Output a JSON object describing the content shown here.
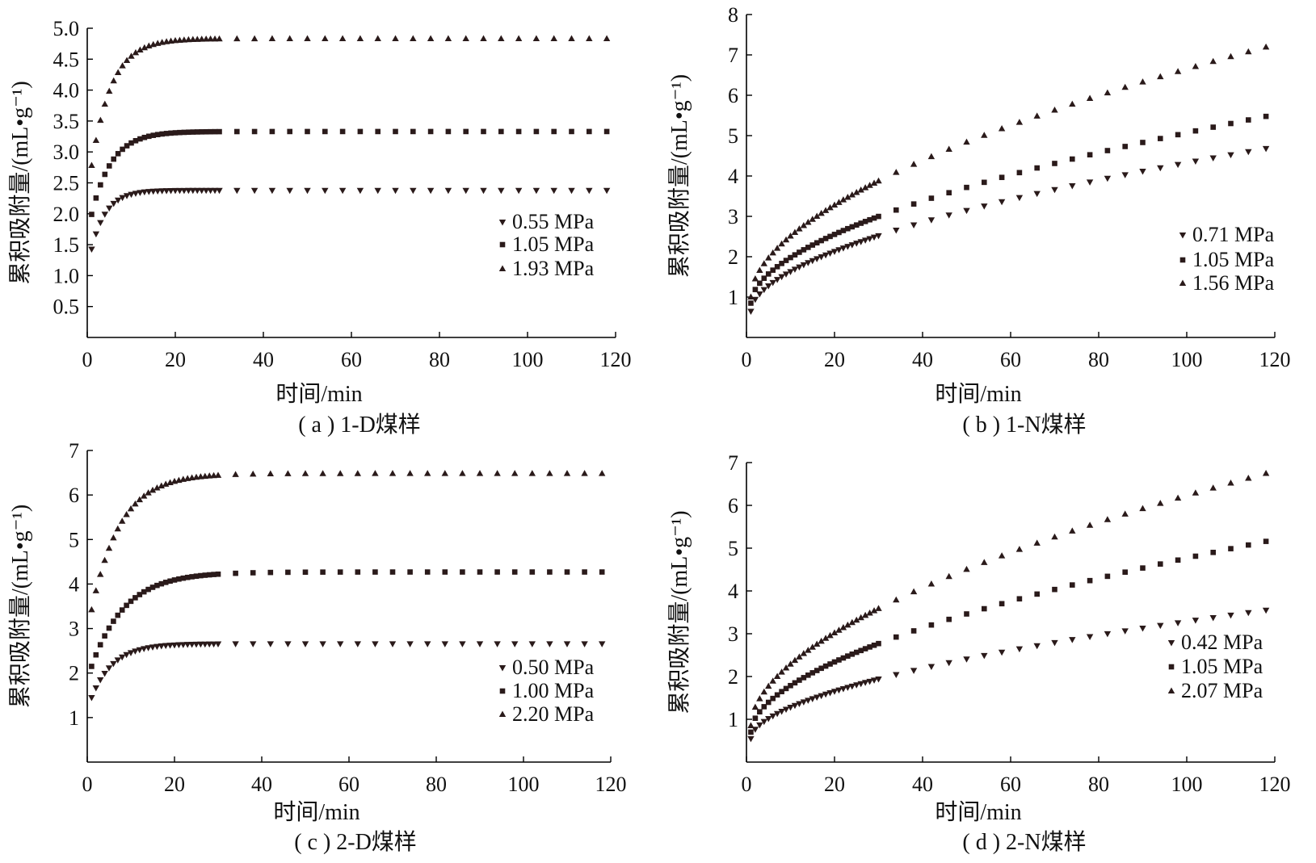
{
  "chart_data": [
    {
      "id": "a",
      "type": "scatter",
      "caption": "( a ) 1-D煤样",
      "xlabel": "时间/min",
      "ylabel": "累积吸附量/(mL•g⁻¹)",
      "xlim": [
        0,
        120
      ],
      "ylim": [
        0,
        5.0
      ],
      "xticks": [
        "0",
        "20",
        "40",
        "60",
        "80",
        "100",
        "120"
      ],
      "yticks": [
        "0.5",
        "1.0",
        "1.5",
        "2.0",
        "2.5",
        "3.0",
        "3.5",
        "4.0",
        "4.5",
        "5.0"
      ],
      "legend_position": "right",
      "series": [
        {
          "name": "0.55 MPa",
          "marker": "triangle-down",
          "asymptote": 2.38,
          "k": 0.3,
          "min": 1.43
        },
        {
          "name": "1.05 MPa",
          "marker": "square",
          "asymptote": 3.33,
          "k": 0.22,
          "min": 1.99
        },
        {
          "name": "1.93 MPa",
          "marker": "triangle-up",
          "asymptote": 4.83,
          "k": 0.22,
          "min": 2.78
        }
      ]
    },
    {
      "id": "b",
      "type": "scatter",
      "caption": "( b ) 1-N煤样",
      "xlabel": "时间/min",
      "ylabel": "累积吸附量/(mL•g⁻¹)",
      "xlim": [
        0,
        120
      ],
      "ylim": [
        0,
        8
      ],
      "xticks": [
        "0",
        "20",
        "40",
        "60",
        "80",
        "100",
        "120"
      ],
      "yticks": [
        "1",
        "2",
        "3",
        "4",
        "5",
        "6",
        "7",
        "8"
      ],
      "legend_position": "right",
      "series": [
        {
          "name": "0.71 MPa",
          "marker": "triangle-down",
          "start": 0.65,
          "end": 4.72
        },
        {
          "name": "1.05 MPa",
          "marker": "square",
          "start": 0.85,
          "end": 5.52
        },
        {
          "name": "1.56 MPa",
          "marker": "triangle-up",
          "start": 1.0,
          "end": 7.25
        }
      ]
    },
    {
      "id": "c",
      "type": "scatter",
      "caption": "( c ) 2-D煤样",
      "xlabel": "时间/min",
      "ylabel": "累积吸附量/(mL•g⁻¹)",
      "xlim": [
        0,
        120
      ],
      "ylim": [
        0,
        7
      ],
      "xticks": [
        "0",
        "20",
        "40",
        "60",
        "80",
        "100",
        "120"
      ],
      "yticks": [
        "1",
        "2",
        "3",
        "4",
        "5",
        "6",
        "7"
      ],
      "legend_position": "right",
      "series": [
        {
          "name": "0.50 MPa",
          "marker": "triangle-down",
          "asymptote": 2.66,
          "k": 0.2,
          "min": 1.45
        },
        {
          "name": "1.00 MPa",
          "marker": "square",
          "asymptote": 4.27,
          "k": 0.13,
          "min": 2.15
        },
        {
          "name": "2.20 MPa",
          "marker": "triangle-up",
          "asymptote": 6.48,
          "k": 0.15,
          "min": 3.42
        }
      ]
    },
    {
      "id": "d",
      "type": "scatter",
      "caption": "( d ) 2-N煤样",
      "xlabel": "时间/min",
      "ylabel": "累积吸附量/(mL•g⁻¹)",
      "xlim": [
        0,
        120
      ],
      "ylim": [
        0,
        7
      ],
      "xticks": [
        "0",
        "20",
        "40",
        "60",
        "80",
        "100",
        "120"
      ],
      "yticks": [
        "1",
        "2",
        "3",
        "4",
        "5",
        "6",
        "7"
      ],
      "legend_position": "right",
      "series": [
        {
          "name": "0.42 MPa",
          "marker": "triangle-down",
          "start": 0.55,
          "end": 3.58
        },
        {
          "name": "1.05 MPa",
          "marker": "square",
          "start": 0.7,
          "end": 5.2
        },
        {
          "name": "2.07 MPa",
          "marker": "triangle-up",
          "start": 0.85,
          "end": 6.8
        }
      ]
    }
  ]
}
